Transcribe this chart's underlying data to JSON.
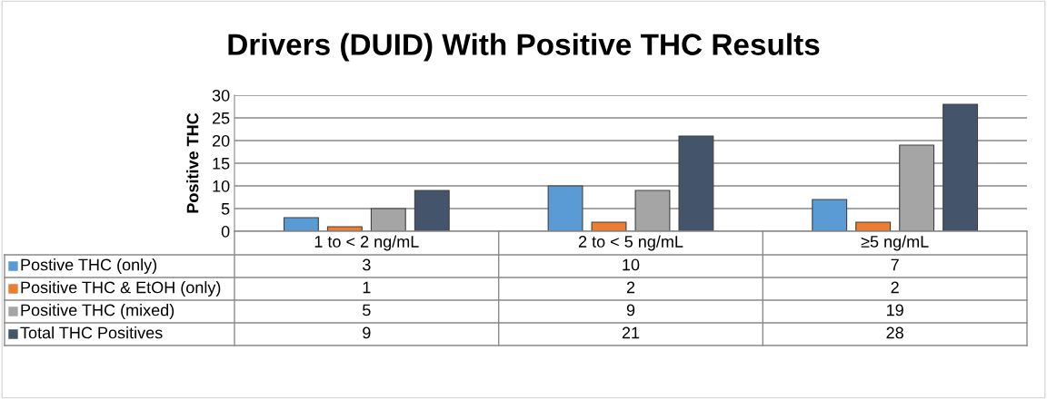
{
  "chart_data": {
    "type": "bar",
    "title": "Drivers (DUID) With Positive THC Results",
    "ylabel": "Positive THC",
    "categories": [
      "1 to < 2 ng/mL",
      "2 to < 5 ng/mL",
      "≥5 ng/mL"
    ],
    "series": [
      {
        "name": "Postive THC (only)",
        "color": "#5b9bd5",
        "values": [
          3,
          10,
          7
        ]
      },
      {
        "name": "Positive THC & EtOH (only)",
        "color": "#ed7d31",
        "values": [
          1,
          2,
          2
        ]
      },
      {
        "name": "Positive THC (mixed)",
        "color": "#a5a5a5",
        "values": [
          5,
          9,
          19
        ]
      },
      {
        "name": "Total THC Positives",
        "color": "#44546a",
        "values": [
          9,
          21,
          28
        ]
      }
    ],
    "ylim": [
      0,
      30
    ],
    "yticks": [
      0,
      5,
      10,
      15,
      20,
      25,
      30
    ],
    "grid": "y",
    "legend": "bottom",
    "data_labels": true
  }
}
